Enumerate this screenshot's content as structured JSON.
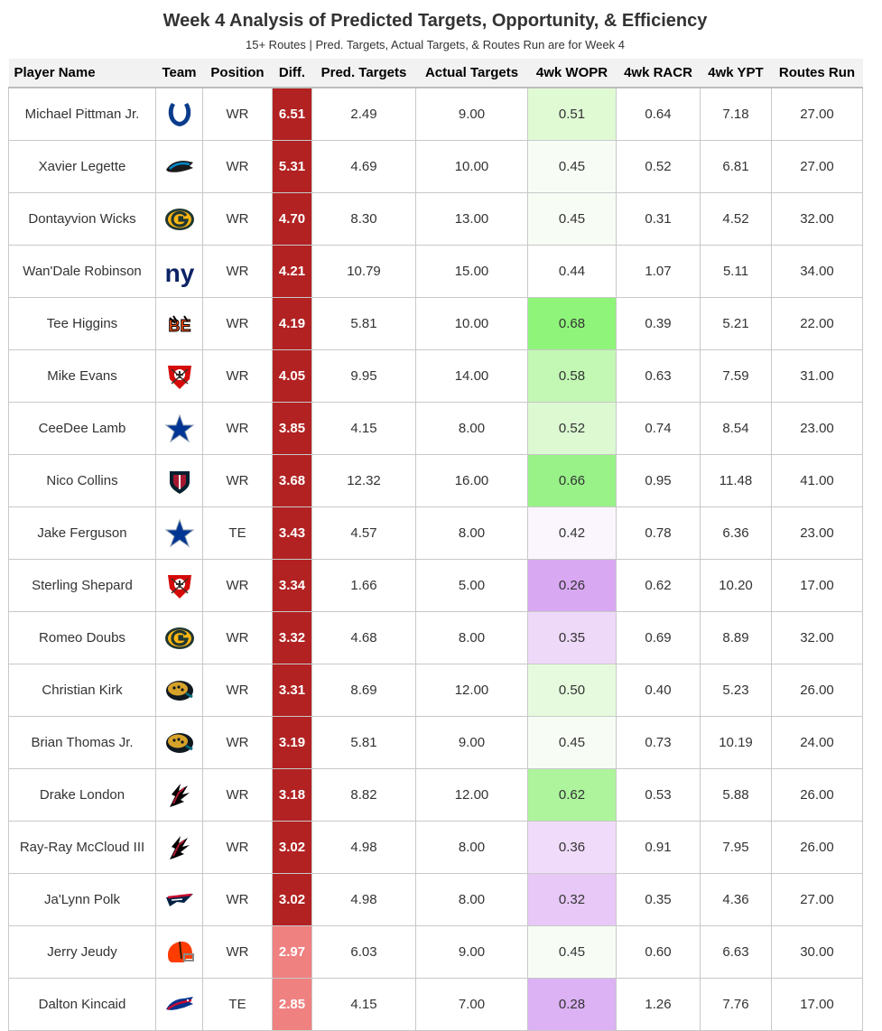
{
  "title": "Week 4 Analysis of Predicted Targets, Opportunity, & Efficiency",
  "subtitle": "15+ Routes | Pred. Targets, Actual Targets, & Routes Run are for Week 4",
  "chart_data": {
    "type": "table",
    "columns": [
      "Player Name",
      "Team",
      "Position",
      "Diff.",
      "Pred. Targets",
      "Actual Targets",
      "4wk WOPR",
      "4wk RACR",
      "4wk YPT",
      "Routes Run"
    ],
    "rows": [
      {
        "player": "Michael Pittman Jr.",
        "team_logo": "colts-horseshoe-icon",
        "position": "WR",
        "diff": "6.51",
        "pred_targets": "2.49",
        "actual_targets": "9.00",
        "wopr": "0.51",
        "racr": "0.64",
        "ypt": "7.18",
        "routes": "27.00",
        "diff_color": "#b22222",
        "wopr_color": "#e0fad4"
      },
      {
        "player": "Xavier Legette",
        "team_logo": "panthers-icon",
        "position": "WR",
        "diff": "5.31",
        "pred_targets": "4.69",
        "actual_targets": "10.00",
        "wopr": "0.45",
        "racr": "0.52",
        "ypt": "6.81",
        "routes": "27.00",
        "diff_color": "#b22222",
        "wopr_color": "#f7fdf5"
      },
      {
        "player": "Dontayvion Wicks",
        "team_logo": "packers-g-icon",
        "position": "WR",
        "diff": "4.70",
        "pred_targets": "8.30",
        "actual_targets": "13.00",
        "wopr": "0.45",
        "racr": "0.31",
        "ypt": "4.52",
        "routes": "32.00",
        "diff_color": "#b22222",
        "wopr_color": "#f7fdf5"
      },
      {
        "player": "Wan'Dale Robinson",
        "team_logo": "giants-ny-icon",
        "position": "WR",
        "diff": "4.21",
        "pred_targets": "10.79",
        "actual_targets": "15.00",
        "wopr": "0.44",
        "racr": "1.07",
        "ypt": "5.11",
        "routes": "34.00",
        "diff_color": "#b22222",
        "wopr_color": "#ffffff"
      },
      {
        "player": "Tee Higgins",
        "team_logo": "bengals-icon",
        "position": "WR",
        "diff": "4.19",
        "pred_targets": "5.81",
        "actual_targets": "10.00",
        "wopr": "0.68",
        "racr": "0.39",
        "ypt": "5.21",
        "routes": "22.00",
        "diff_color": "#b22222",
        "wopr_color": "#8ef57a"
      },
      {
        "player": "Mike Evans",
        "team_logo": "buccaneers-icon",
        "position": "WR",
        "diff": "4.05",
        "pred_targets": "9.95",
        "actual_targets": "14.00",
        "wopr": "0.58",
        "racr": "0.63",
        "ypt": "7.59",
        "routes": "31.00",
        "diff_color": "#b22222",
        "wopr_color": "#c2f7b4"
      },
      {
        "player": "CeeDee Lamb",
        "team_logo": "cowboys-star-icon",
        "position": "WR",
        "diff": "3.85",
        "pred_targets": "4.15",
        "actual_targets": "8.00",
        "wopr": "0.52",
        "racr": "0.74",
        "ypt": "8.54",
        "routes": "23.00",
        "diff_color": "#b22222",
        "wopr_color": "#dcf9d2"
      },
      {
        "player": "Nico Collins",
        "team_logo": "texans-icon",
        "position": "WR",
        "diff": "3.68",
        "pred_targets": "12.32",
        "actual_targets": "16.00",
        "wopr": "0.66",
        "racr": "0.95",
        "ypt": "11.48",
        "routes": "41.00",
        "diff_color": "#b22222",
        "wopr_color": "#98f288"
      },
      {
        "player": "Jake Ferguson",
        "team_logo": "cowboys-star-icon",
        "position": "TE",
        "diff": "3.43",
        "pred_targets": "4.57",
        "actual_targets": "8.00",
        "wopr": "0.42",
        "racr": "0.78",
        "ypt": "6.36",
        "routes": "23.00",
        "diff_color": "#b22222",
        "wopr_color": "#fbf5fd"
      },
      {
        "player": "Sterling Shepard",
        "team_logo": "buccaneers-icon",
        "position": "WR",
        "diff": "3.34",
        "pred_targets": "1.66",
        "actual_targets": "5.00",
        "wopr": "0.26",
        "racr": "0.62",
        "ypt": "10.20",
        "routes": "17.00",
        "diff_color": "#b22222",
        "wopr_color": "#d8a8f2"
      },
      {
        "player": "Romeo Doubs",
        "team_logo": "packers-g-icon",
        "position": "WR",
        "diff": "3.32",
        "pred_targets": "4.68",
        "actual_targets": "8.00",
        "wopr": "0.35",
        "racr": "0.69",
        "ypt": "8.89",
        "routes": "32.00",
        "diff_color": "#b22222",
        "wopr_color": "#efd9f9"
      },
      {
        "player": "Christian Kirk",
        "team_logo": "jaguars-icon",
        "position": "WR",
        "diff": "3.31",
        "pred_targets": "8.69",
        "actual_targets": "12.00",
        "wopr": "0.50",
        "racr": "0.40",
        "ypt": "5.23",
        "routes": "26.00",
        "diff_color": "#b22222",
        "wopr_color": "#e6fbde"
      },
      {
        "player": "Brian Thomas Jr.",
        "team_logo": "jaguars-icon",
        "position": "WR",
        "diff": "3.19",
        "pred_targets": "5.81",
        "actual_targets": "9.00",
        "wopr": "0.45",
        "racr": "0.73",
        "ypt": "10.19",
        "routes": "24.00",
        "diff_color": "#b22222",
        "wopr_color": "#f7fdf5"
      },
      {
        "player": "Drake London",
        "team_logo": "falcons-icon",
        "position": "WR",
        "diff": "3.18",
        "pred_targets": "8.82",
        "actual_targets": "12.00",
        "wopr": "0.62",
        "racr": "0.53",
        "ypt": "5.88",
        "routes": "26.00",
        "diff_color": "#b22222",
        "wopr_color": "#adf49c"
      },
      {
        "player": "Ray-Ray McCloud III",
        "team_logo": "falcons-icon",
        "position": "WR",
        "diff": "3.02",
        "pred_targets": "4.98",
        "actual_targets": "8.00",
        "wopr": "0.36",
        "racr": "0.91",
        "ypt": "7.95",
        "routes": "26.00",
        "diff_color": "#b22222",
        "wopr_color": "#f0dcfa"
      },
      {
        "player": "Ja'Lynn Polk",
        "team_logo": "patriots-icon",
        "position": "WR",
        "diff": "3.02",
        "pred_targets": "4.98",
        "actual_targets": "8.00",
        "wopr": "0.32",
        "racr": "0.35",
        "ypt": "4.36",
        "routes": "27.00",
        "diff_color": "#b22222",
        "wopr_color": "#e8c8f7"
      },
      {
        "player": "Jerry Jeudy",
        "team_logo": "browns-helmet-icon",
        "position": "WR",
        "diff": "2.97",
        "pred_targets": "6.03",
        "actual_targets": "9.00",
        "wopr": "0.45",
        "racr": "0.60",
        "ypt": "6.63",
        "routes": "30.00",
        "diff_color": "#ef8181",
        "wopr_color": "#f7fdf5"
      },
      {
        "player": "Dalton Kincaid",
        "team_logo": "bills-icon",
        "position": "TE",
        "diff": "2.85",
        "pred_targets": "4.15",
        "actual_targets": "7.00",
        "wopr": "0.28",
        "racr": "1.26",
        "ypt": "7.76",
        "routes": "17.00",
        "diff_color": "#ef8181",
        "wopr_color": "#dcb2f4"
      }
    ]
  }
}
